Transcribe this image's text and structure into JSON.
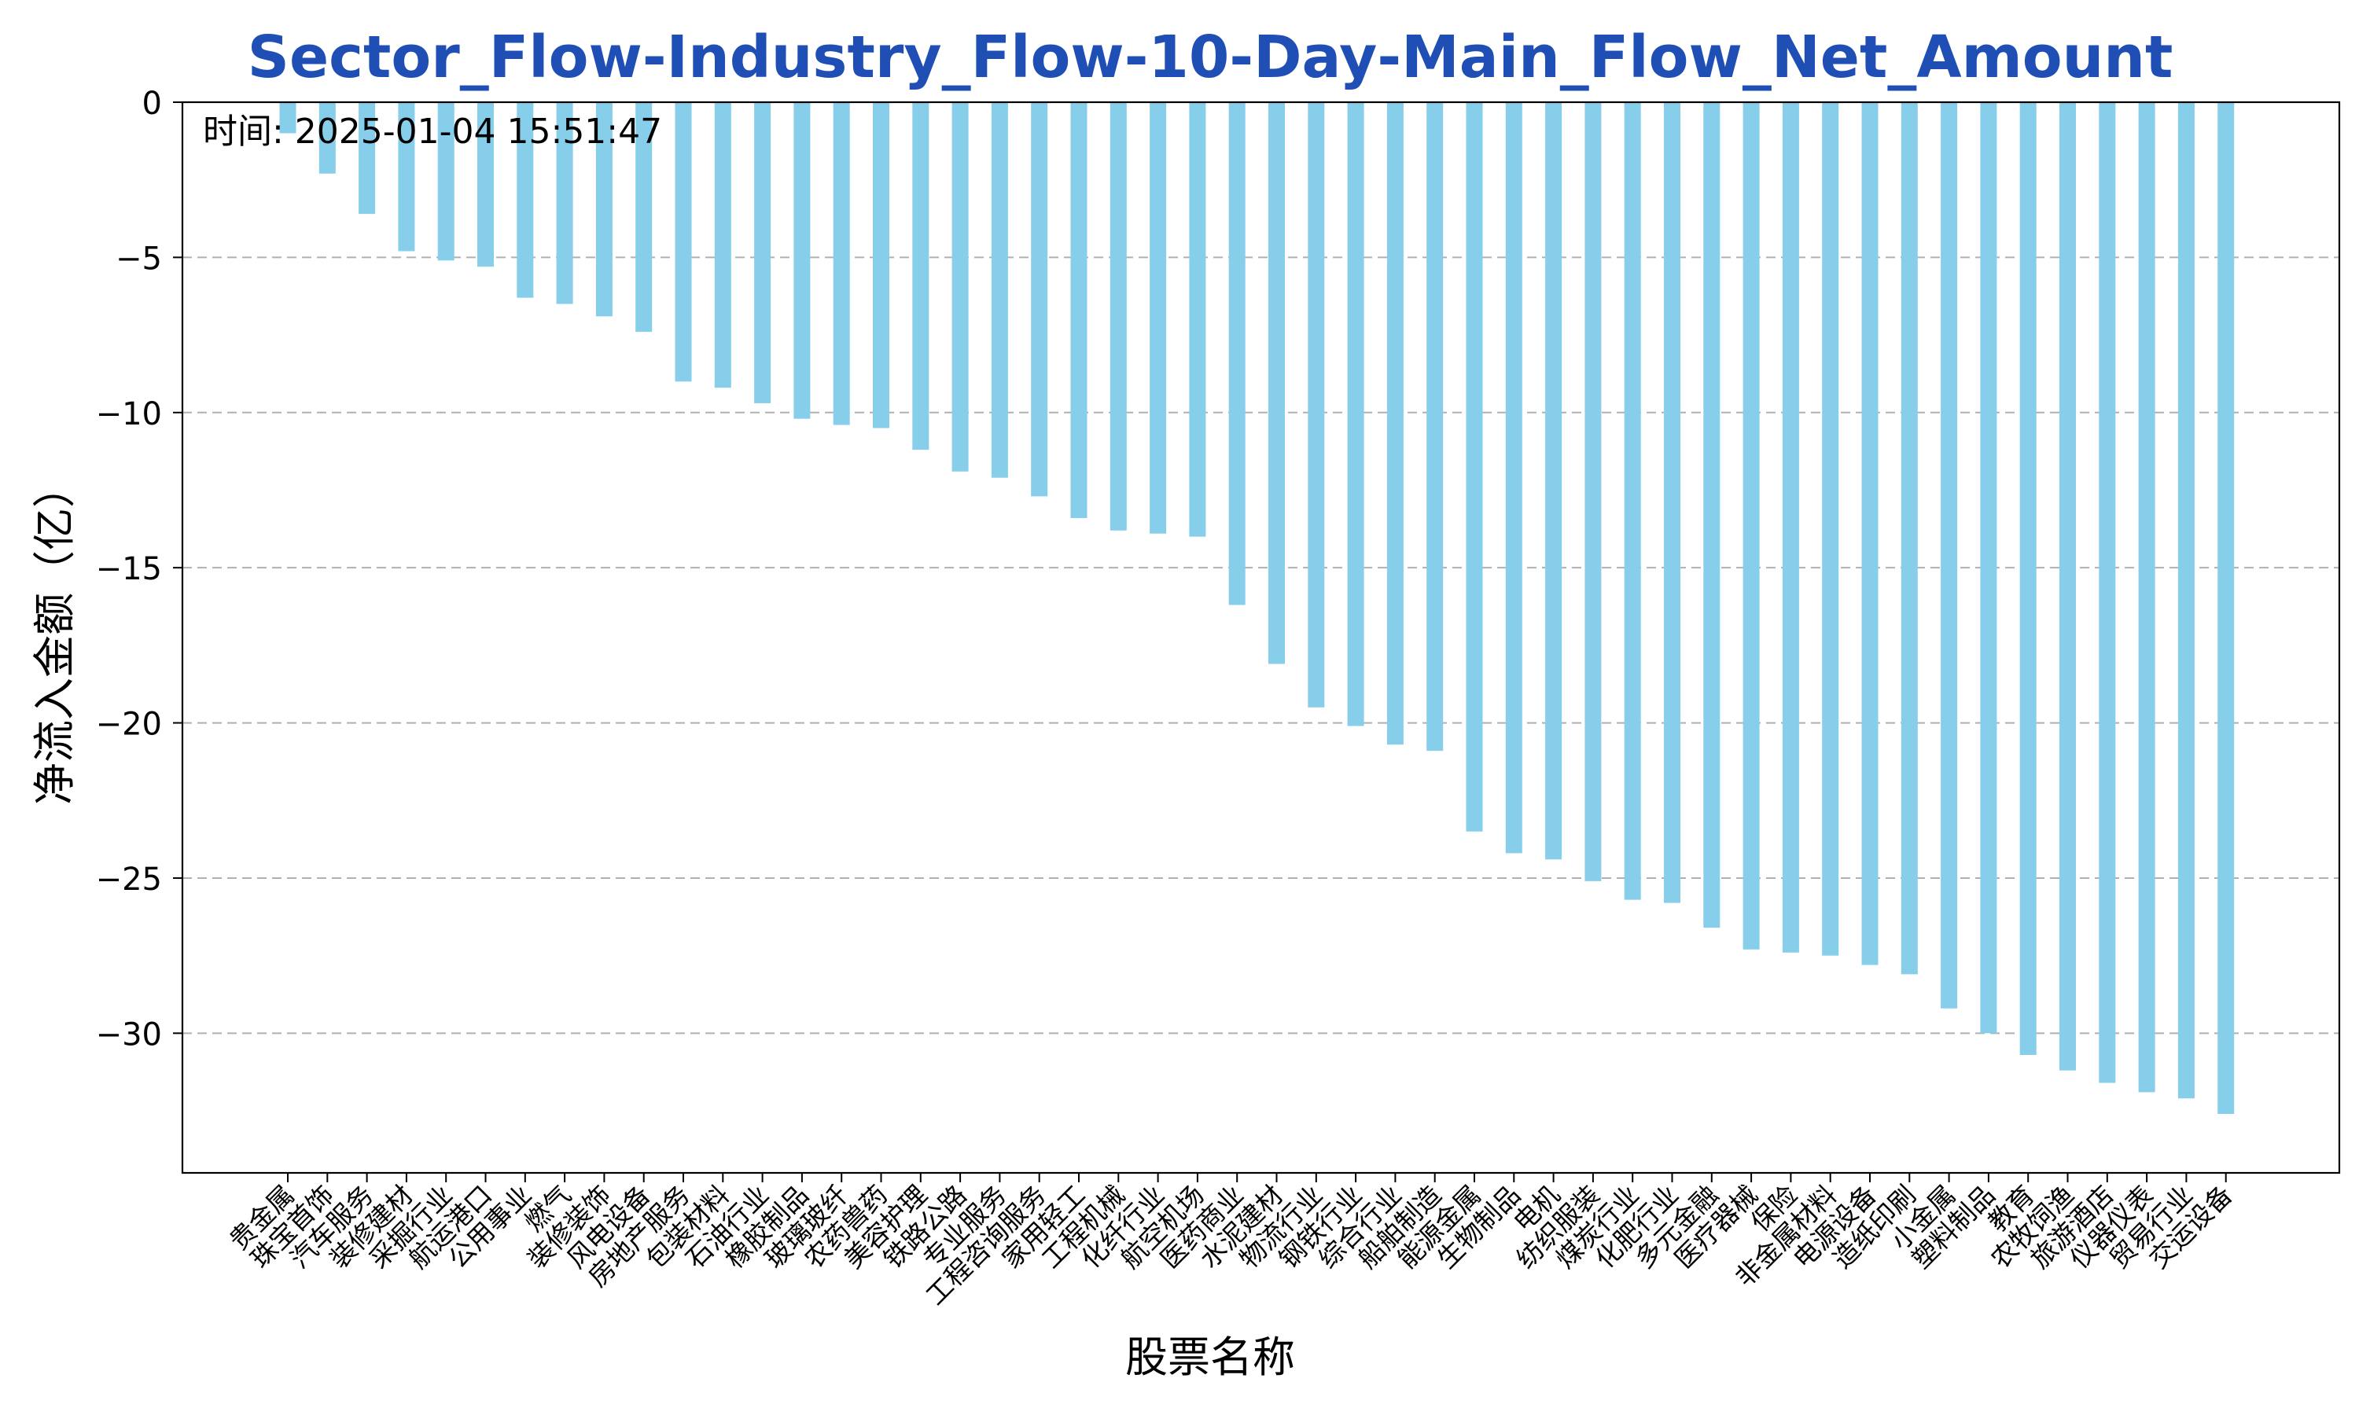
{
  "colors": {
    "bar": "#87ceeb",
    "title": "#1f4fb5",
    "axis": "#000000",
    "grid": "#b0b0b0"
  },
  "chart_data": {
    "type": "bar",
    "title": "Sector_Flow-Industry_Flow-10-Day-Main_Flow_Net_Amount",
    "annotation": "时间: 2025-01-04 15:51:47",
    "xlabel": "股票名称",
    "ylabel": "净流入金额（亿）",
    "ylim": [
      -34.5,
      0
    ],
    "yticks": [
      0,
      -5,
      -10,
      -15,
      -20,
      -25,
      -30
    ],
    "ytick_labels": [
      "0",
      "−5",
      "−10",
      "−15",
      "−20",
      "−25",
      "−30"
    ],
    "grid": "y-dashed",
    "categories": [
      "贵金属",
      "珠宝首饰",
      "汽车服务",
      "装修建材",
      "采掘行业",
      "航运港口",
      "公用事业",
      "燃气",
      "装修装饰",
      "风电设备",
      "房地产服务",
      "包装材料",
      "石油行业",
      "橡胶制品",
      "玻璃玻纤",
      "农药兽药",
      "美容护理",
      "铁路公路",
      "专业服务",
      "工程咨询服务",
      "家用轻工",
      "工程机械",
      "化纤行业",
      "航空机场",
      "医药商业",
      "水泥建材",
      "物流行业",
      "钢铁行业",
      "综合行业",
      "船舶制造",
      "能源金属",
      "生物制品",
      "电机",
      "纺织服装",
      "煤炭行业",
      "化肥行业",
      "多元金融",
      "医疗器械",
      "保险",
      "非金属材料",
      "电源设备",
      "造纸印刷",
      "小金属",
      "塑料制品",
      "教育",
      "农牧饲渔",
      "旅游酒店",
      "仪器仪表",
      "贸易行业",
      "交运设备"
    ],
    "values": [
      -1.0,
      -2.3,
      -3.6,
      -4.8,
      -5.1,
      -5.3,
      -6.3,
      -6.5,
      -6.9,
      -7.4,
      -9.0,
      -9.2,
      -9.7,
      -10.2,
      -10.4,
      -10.5,
      -11.2,
      -11.9,
      -12.1,
      -12.7,
      -13.4,
      -13.8,
      -13.9,
      -14.0,
      -16.2,
      -18.1,
      -19.5,
      -20.1,
      -20.7,
      -20.9,
      -23.5,
      -24.2,
      -24.4,
      -25.1,
      -25.7,
      -25.8,
      -26.6,
      -27.3,
      -27.4,
      -27.5,
      -27.8,
      -28.1,
      -29.2,
      -30.0,
      -30.7,
      -31.2,
      -31.6,
      -31.9,
      -32.1,
      -32.6
    ]
  }
}
